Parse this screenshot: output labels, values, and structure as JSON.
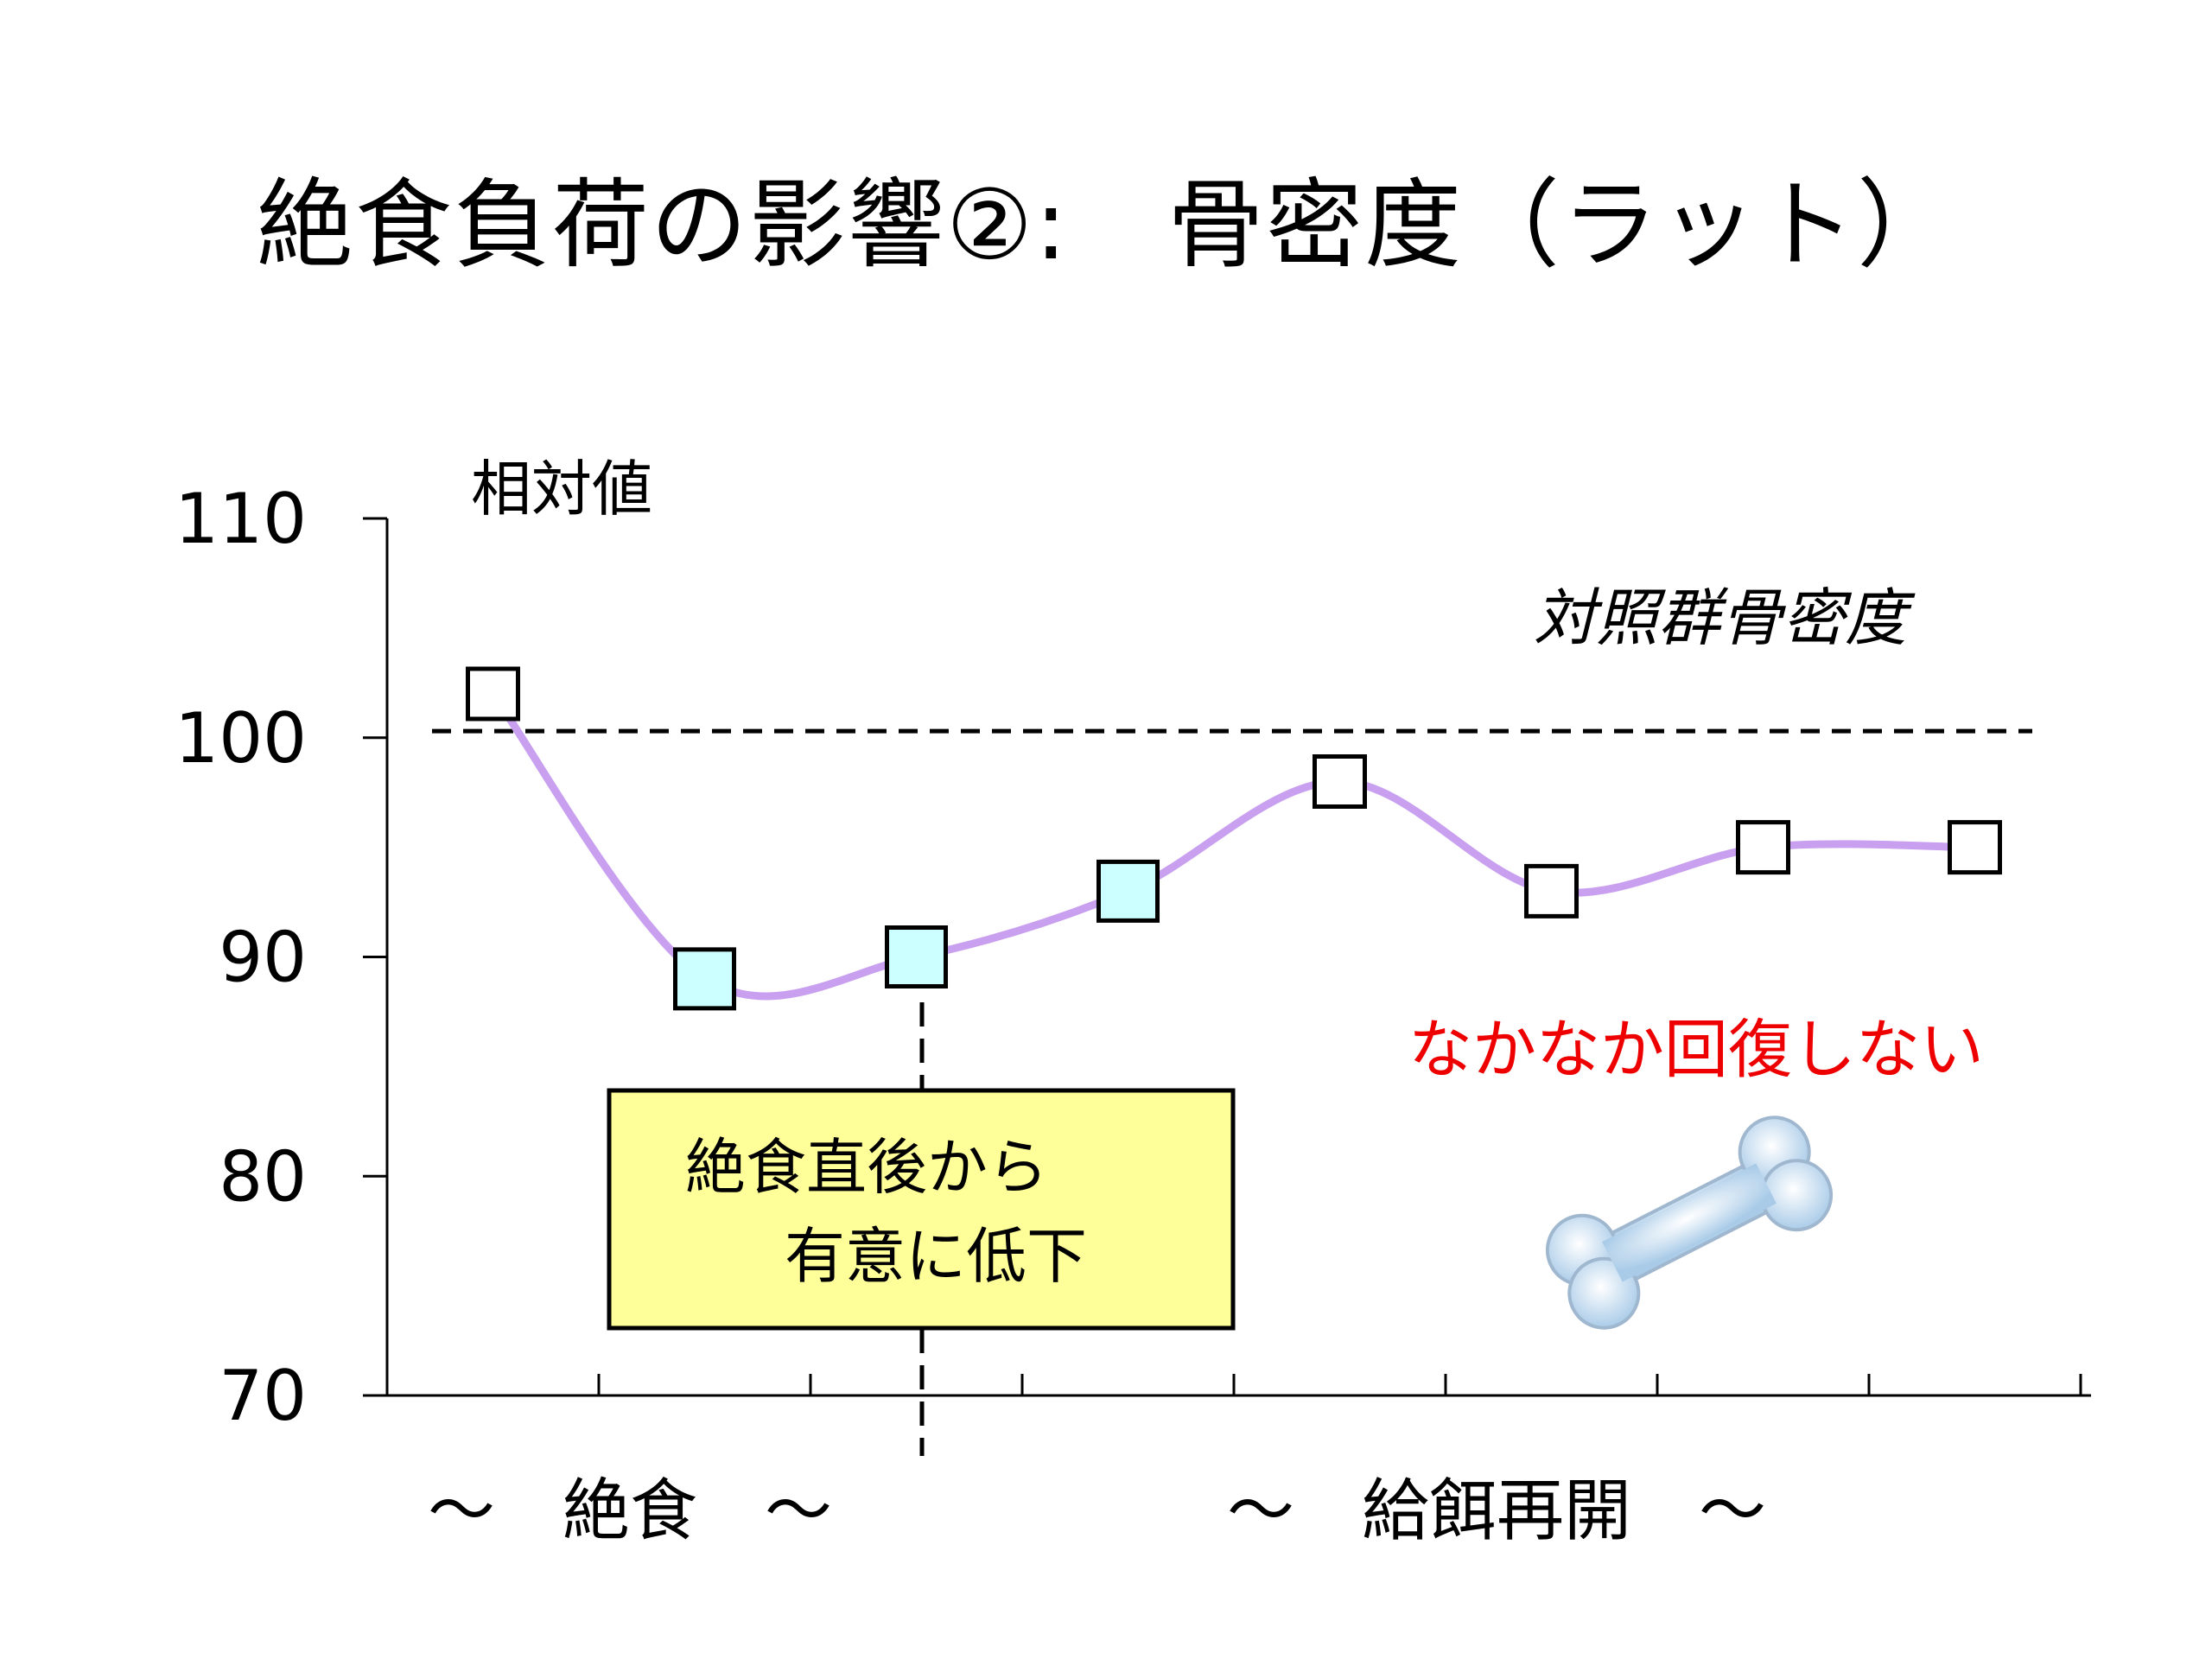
{
  "slide": {
    "title": "絶食負荷の影響②:　骨密度（ラット）"
  },
  "chart_data": {
    "type": "line",
    "title": "",
    "ylabel": "相対値",
    "xlabel": "",
    "ylim": [
      70,
      110
    ],
    "yticks": [
      "70",
      "80",
      "90",
      "100",
      "110"
    ],
    "series": [
      {
        "values": [
          102,
          89,
          90,
          93,
          98,
          93,
          95,
          95
        ],
        "highlighted": [
          false,
          true,
          true,
          true,
          false,
          false,
          false,
          false
        ]
      }
    ],
    "reference_line": {
      "value": 100.3,
      "label": "対照群骨密度"
    },
    "periods": {
      "fasting": "～　絶食　～",
      "refeeding": "～　給餌再開　～"
    },
    "callout": {
      "line1": "絶食直後から",
      "line2": "有意に低下"
    },
    "note": "なかなか回復しない",
    "colors": {
      "line": "#c9a0f0",
      "marker_highlight": "#ccffff",
      "marker_normal": "#ffffff",
      "callout_bg": "#ffff99",
      "note": "#ee0000",
      "bone": "#d4e8f8"
    },
    "grid": false
  }
}
